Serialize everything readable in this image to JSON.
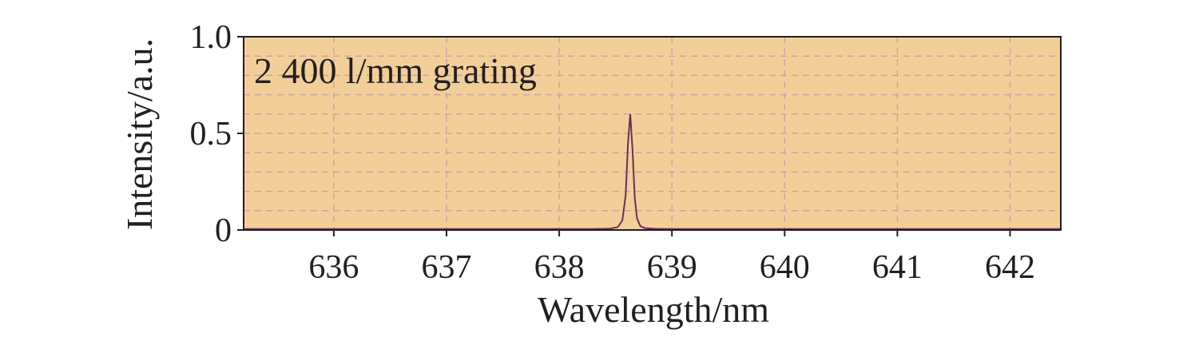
{
  "chart_data": {
    "type": "line",
    "title": "",
    "annotation": "2 400 l/mm grating",
    "xlabel": "Wavelength/nm",
    "ylabel": "Intensity/a.u.",
    "xlim": [
      635.2,
      642.45
    ],
    "ylim": [
      0,
      1.0
    ],
    "x_ticks": [
      636,
      637,
      638,
      639,
      640,
      641,
      642
    ],
    "x_tick_labels": [
      "636",
      "637",
      "638",
      "639",
      "640",
      "641",
      "642"
    ],
    "y_ticks": [
      0,
      0.5,
      1.0
    ],
    "y_tick_labels": [
      "0",
      "0.5",
      "1.0"
    ],
    "grid": true,
    "legend": "none",
    "colors": {
      "plot_background": "#f2cf98",
      "grid": "#c9a7a2",
      "line": "#6b2f5c",
      "axes": "#231f20"
    },
    "series": [
      {
        "x": [
          635.2,
          638.3,
          638.45,
          638.52,
          638.56,
          638.59,
          638.61,
          638.63,
          638.65,
          638.67,
          638.69,
          638.72,
          638.76,
          638.85,
          639.0,
          642.45
        ],
        "y": [
          0.005,
          0.005,
          0.007,
          0.015,
          0.05,
          0.18,
          0.45,
          0.6,
          0.42,
          0.17,
          0.06,
          0.02,
          0.01,
          0.006,
          0.005,
          0.005
        ]
      }
    ]
  }
}
